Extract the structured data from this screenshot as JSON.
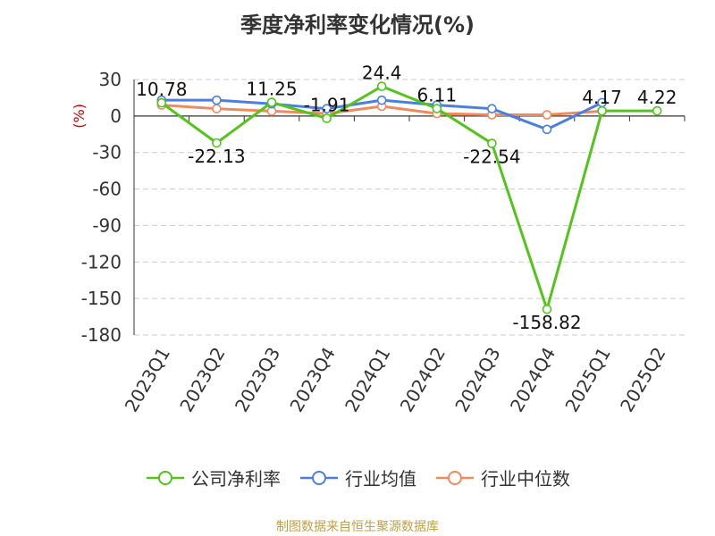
{
  "chart_data": {
    "type": "line",
    "title": "季度净利率变化情况(%)",
    "ylabel": "(%)",
    "ylim": [
      -180,
      30
    ],
    "yticks": [
      30,
      0,
      -30,
      -60,
      -90,
      -120,
      -150,
      -180
    ],
    "categories": [
      "2023Q1",
      "2023Q2",
      "2023Q3",
      "2023Q4",
      "2024Q1",
      "2024Q2",
      "2024Q3",
      "2024Q4",
      "2025Q1",
      "2025Q2"
    ],
    "grid": true,
    "legend_position": "bottom",
    "series": [
      {
        "name": "公司净利率",
        "color": "#52c41a",
        "values": [
          10.78,
          -22.13,
          11.25,
          -1.91,
          24.4,
          6.11,
          -22.54,
          -158.82,
          4.17,
          4.22
        ],
        "labels": [
          "10.78",
          "-22.13",
          "11.25",
          "-1.91",
          "24.4",
          "6.11",
          "-22.54",
          "-158.82",
          "4.17",
          "4.22"
        ]
      },
      {
        "name": "行业均值",
        "color": "#4a7fe0",
        "values": [
          13,
          13,
          10,
          6,
          13,
          9,
          6,
          -11,
          11,
          null
        ]
      },
      {
        "name": "行业中位数",
        "color": "#f08a5d",
        "values": [
          9,
          6,
          4,
          2,
          8,
          2,
          1,
          1,
          4,
          null
        ]
      }
    ]
  },
  "source_text": "制图数据来自恒生聚源数据库"
}
